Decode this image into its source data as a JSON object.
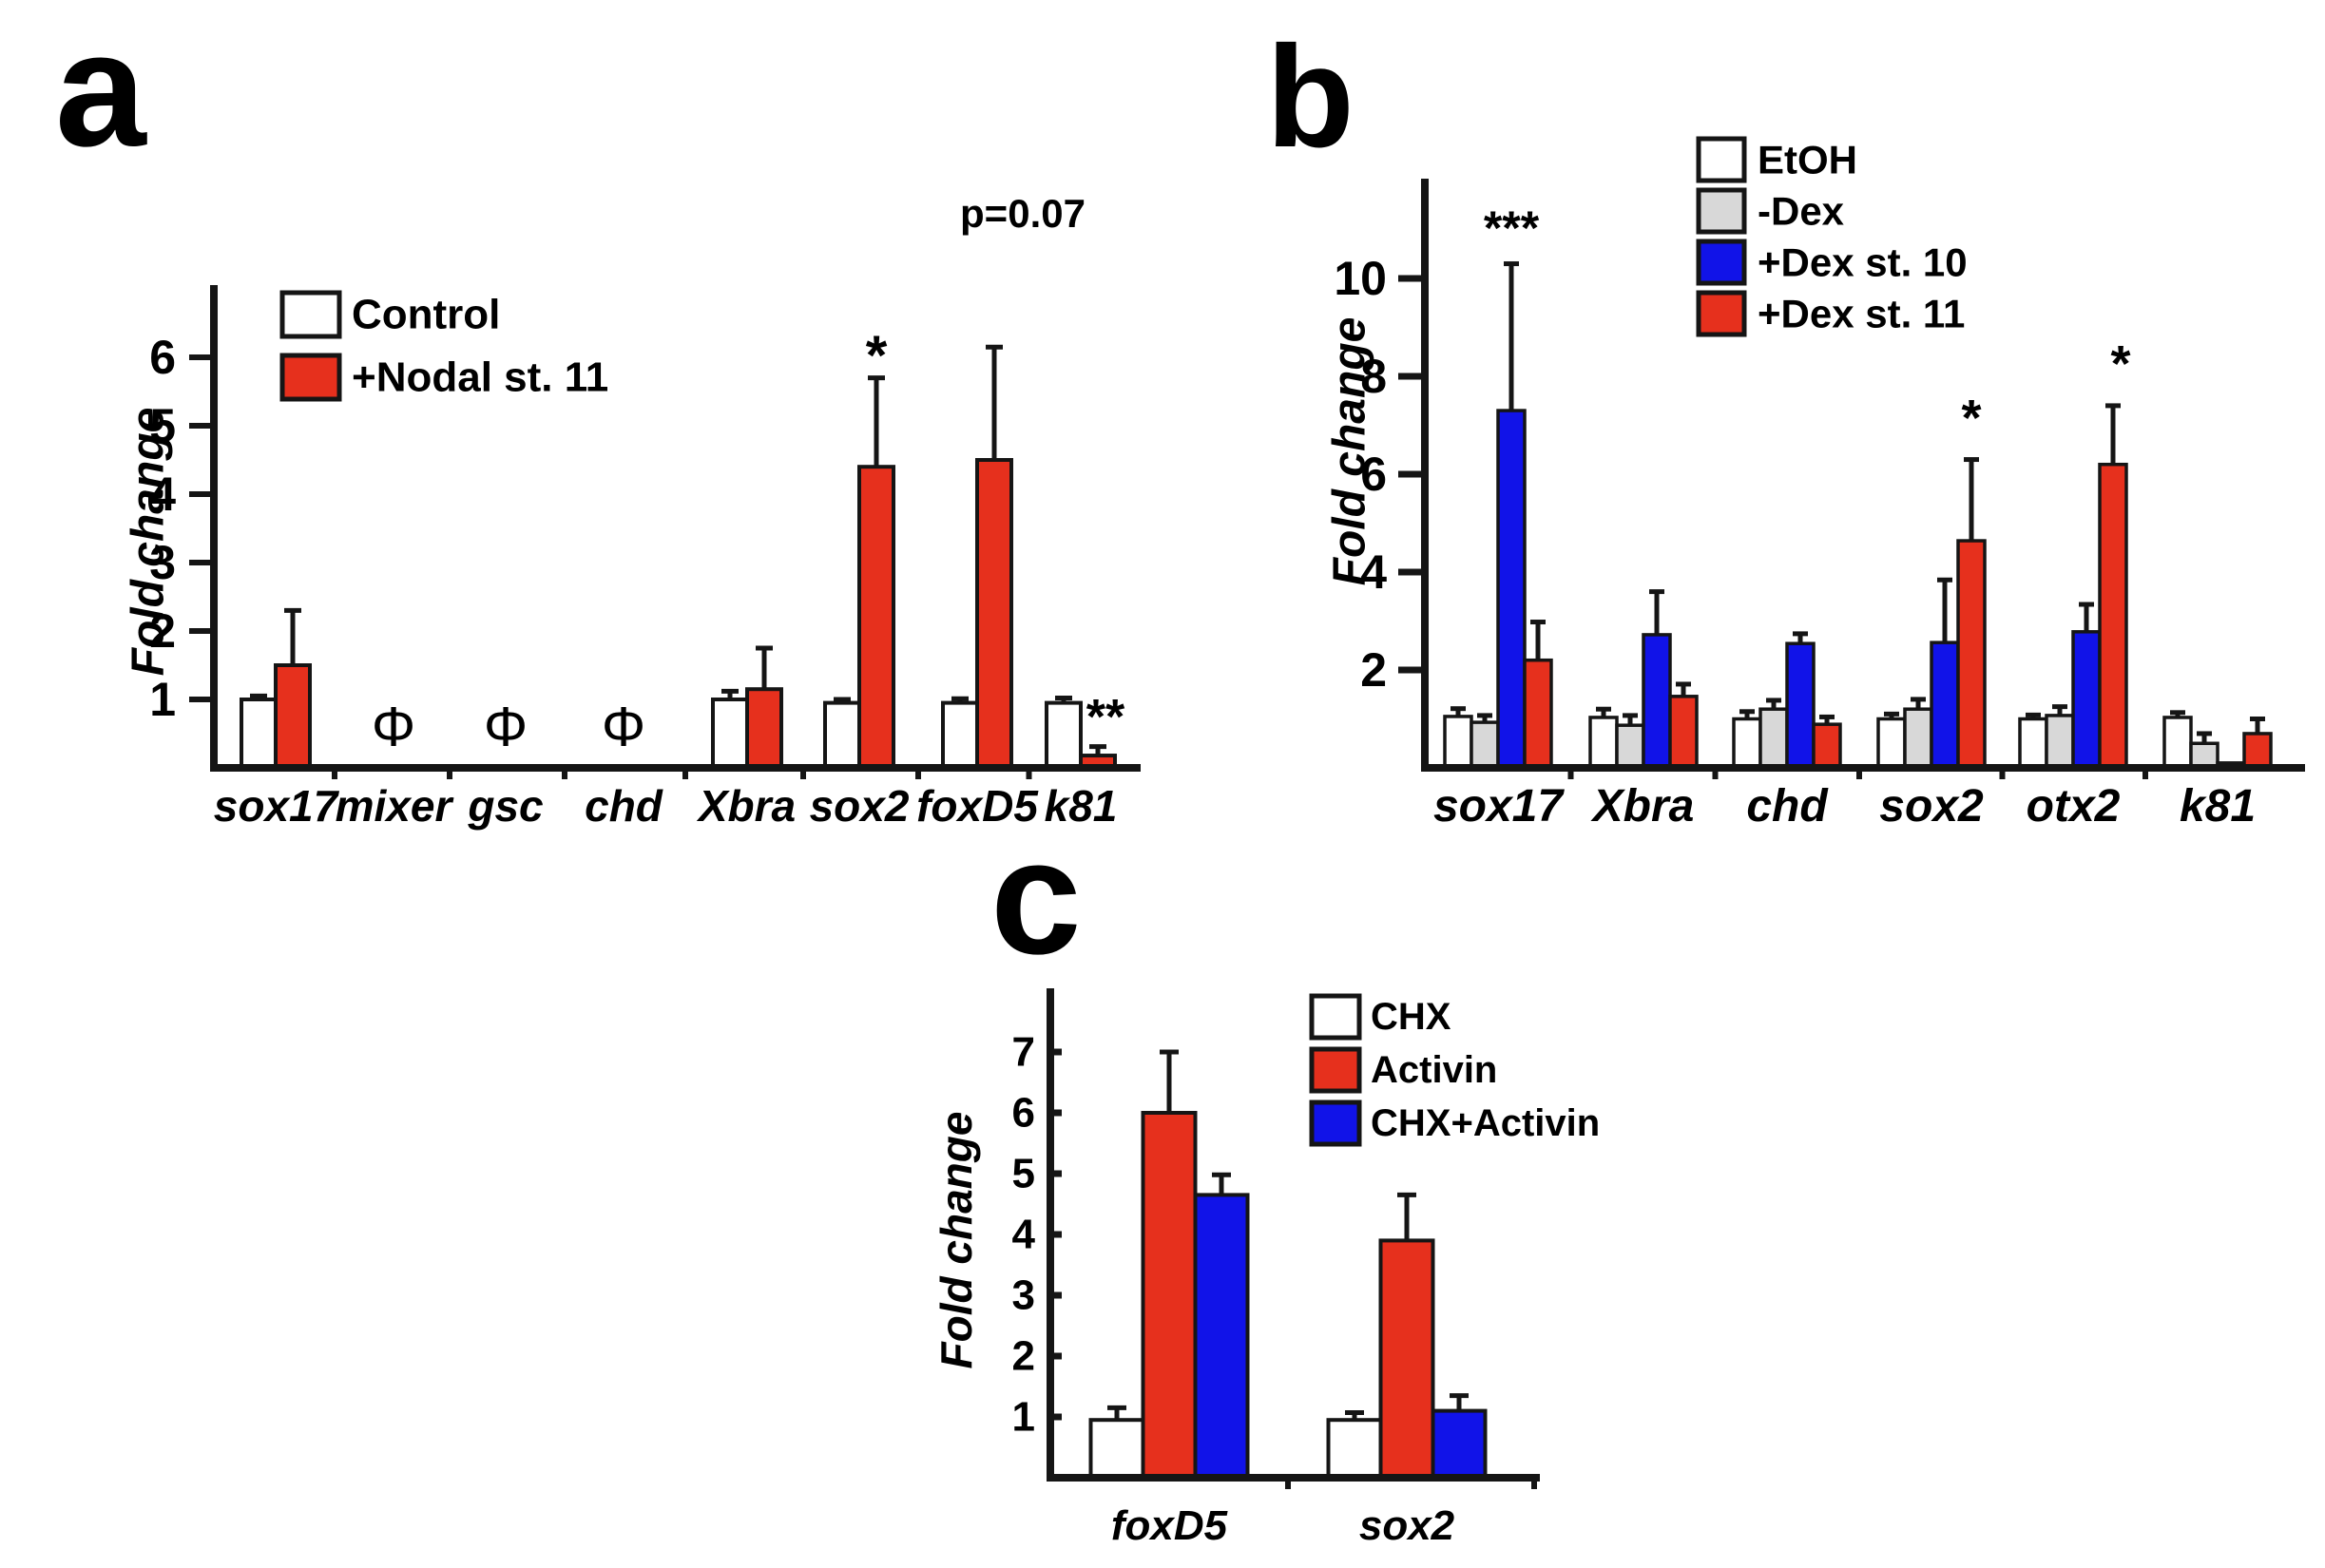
{
  "panel_letters": [
    {
      "id": "a",
      "label": "a"
    },
    {
      "id": "b",
      "label": "b"
    },
    {
      "id": "c",
      "label": "c"
    }
  ],
  "palette": {
    "white_bar": "#ffffff",
    "red_bar": "#e6301d",
    "blue_bar": "#1113e8",
    "gray_bar": "#d8d8d8",
    "outline": "#151515",
    "text": "#000000"
  },
  "chart_data": [
    {
      "panel": "a",
      "type": "bar",
      "title": "",
      "xlabel": "",
      "ylabel": "Fold change",
      "ylim": [
        0,
        7.0
      ],
      "yticks": [
        1,
        2,
        3,
        4,
        5,
        6
      ],
      "grid": false,
      "legend_position": "top-left-inside",
      "categories": [
        "sox17",
        "mixer",
        "gsc",
        "chd",
        "Xbra",
        "sox2",
        "foxD5",
        "k81"
      ],
      "phi_categories": [
        "mixer",
        "gsc",
        "chd"
      ],
      "phi_symbol": "Φ",
      "series": [
        {
          "name": "Control",
          "color_key": "white_bar",
          "values": [
            1.0,
            null,
            null,
            null,
            1.0,
            0.95,
            0.95,
            0.95
          ],
          "errors": [
            0.05,
            null,
            null,
            null,
            0.12,
            0.05,
            0.06,
            0.07
          ]
        },
        {
          "name": "+Nodal st. 11",
          "color_key": "red_bar",
          "values": [
            1.5,
            null,
            null,
            null,
            1.15,
            4.4,
            4.5,
            0.18
          ],
          "errors": [
            0.8,
            null,
            null,
            null,
            0.6,
            1.3,
            1.65,
            0.13
          ]
        }
      ],
      "annotations": [
        {
          "text": "*",
          "category": "sox2",
          "series": "+Nodal st. 11",
          "y": 5.75,
          "dx": 0,
          "font": 58
        },
        {
          "text": "p=0.07",
          "category": "foxD5",
          "series": "+Nodal st. 11",
          "y": 7.9,
          "dx": 30,
          "font": 42
        },
        {
          "text": "**",
          "category": "k81",
          "series": "+Nodal st. 11",
          "y": 0.5,
          "dx": 8,
          "font": 52
        }
      ]
    },
    {
      "panel": "b",
      "type": "bar",
      "title": "",
      "xlabel": "",
      "ylabel": "Fold change",
      "ylim": [
        0,
        12.0
      ],
      "yticks": [
        2,
        4,
        6,
        8,
        10
      ],
      "grid": false,
      "legend_position": "top-right-inside",
      "categories": [
        "sox17",
        "Xbra",
        "chd",
        "sox2",
        "otx2",
        "k81"
      ],
      "phi_categories": [],
      "phi_symbol": "Φ",
      "series": [
        {
          "name": "EtOH",
          "color_key": "white_bar",
          "values": [
            1.05,
            1.03,
            1.0,
            1.0,
            1.0,
            1.03
          ],
          "errors": [
            0.16,
            0.17,
            0.15,
            0.1,
            0.08,
            0.1
          ]
        },
        {
          "name": "-Dex",
          "color_key": "gray_bar",
          "values": [
            0.93,
            0.87,
            1.2,
            1.2,
            1.07,
            0.5
          ],
          "errors": [
            0.14,
            0.2,
            0.18,
            0.2,
            0.18,
            0.2
          ]
        },
        {
          "name": "+Dex st. 10",
          "color_key": "blue_bar",
          "values": [
            7.3,
            2.72,
            2.54,
            2.56,
            2.78,
            0.1
          ],
          "errors": [
            3.0,
            0.88,
            0.2,
            1.28,
            0.56,
            0
          ]
        },
        {
          "name": "+Dex st. 11",
          "color_key": "red_bar",
          "values": [
            2.2,
            1.46,
            0.89,
            4.64,
            6.2,
            0.7
          ],
          "errors": [
            0.78,
            0.25,
            0.15,
            1.66,
            1.2,
            0.3
          ]
        }
      ],
      "annotations": [
        {
          "text": "***",
          "category": "sox17",
          "series": "+Dex st. 10",
          "y": 10.7,
          "dx": 0,
          "font": 50
        },
        {
          "text": "*",
          "category": "sox2",
          "series": "+Dex st. 11",
          "y": 6.8,
          "dx": 0,
          "font": 54
        },
        {
          "text": "*",
          "category": "otx2",
          "series": "+Dex st. 11",
          "y": 7.9,
          "dx": 8,
          "font": 54
        }
      ]
    },
    {
      "panel": "c",
      "type": "bar",
      "title": "",
      "xlabel": "",
      "ylabel": "Fold change",
      "ylim": [
        0,
        7.9
      ],
      "yticks": [
        1,
        2,
        3,
        4,
        5,
        6,
        7
      ],
      "grid": false,
      "legend_position": "top-right-inside",
      "categories": [
        "foxD5",
        "sox2"
      ],
      "phi_categories": [],
      "phi_symbol": "Φ",
      "series": [
        {
          "name": "CHX",
          "color_key": "white_bar",
          "values": [
            0.95,
            0.95
          ],
          "errors": [
            0.2,
            0.12
          ]
        },
        {
          "name": "Activin",
          "color_key": "red_bar",
          "values": [
            6.0,
            3.9
          ],
          "errors": [
            1.0,
            0.75
          ]
        },
        {
          "name": "CHX+Activin",
          "color_key": "blue_bar",
          "values": [
            4.65,
            1.1
          ],
          "errors": [
            0.33,
            0.25
          ]
        }
      ],
      "annotations": []
    }
  ]
}
